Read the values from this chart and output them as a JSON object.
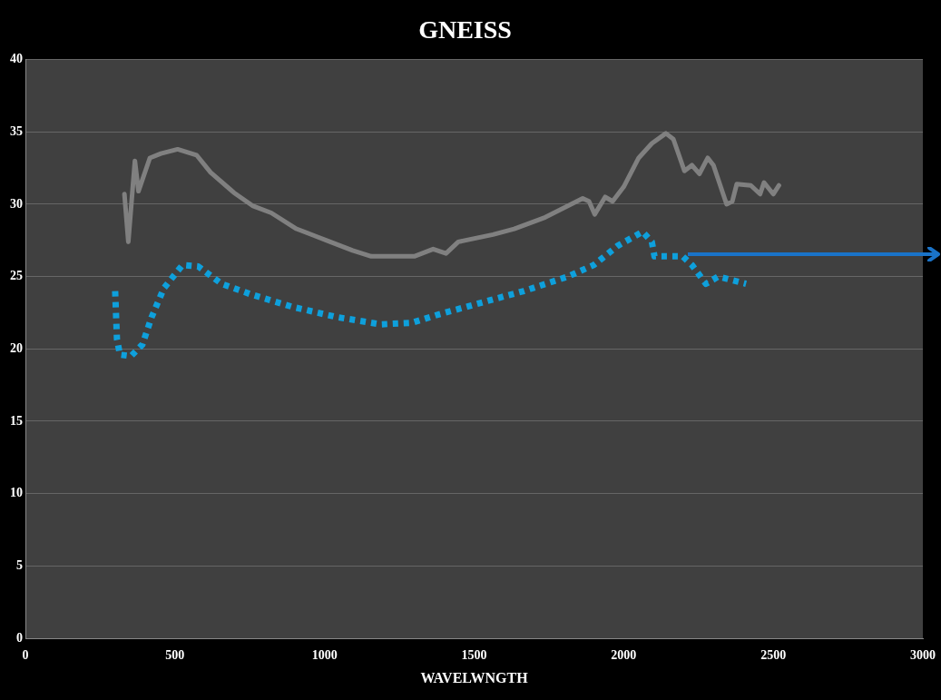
{
  "chart_data": {
    "type": "line",
    "title": "GNEISS",
    "xlabel": "WAVELWNGTH",
    "xlim": [
      0,
      3000
    ],
    "xticks": [
      0,
      500,
      1000,
      1500,
      2000,
      2500,
      3000
    ],
    "ylim": [
      0,
      40
    ],
    "yticks": [
      0,
      5,
      10,
      15,
      20,
      25,
      30,
      35,
      40
    ],
    "grid": "y",
    "legend": false,
    "marker": "none",
    "series": [
      {
        "color": "#808080",
        "line_style": "solid",
        "x": [
          331,
          344,
          366,
          378,
          416,
          453,
          509,
          572,
          619,
          697,
          759,
          822,
          906,
          969,
          1019,
          1094,
          1156,
          1300,
          1363,
          1406,
          1447,
          1563,
          1634,
          1738,
          1863,
          1884,
          1903,
          1938,
          1963,
          2000,
          2050,
          2094,
          2141,
          2166,
          2203,
          2228,
          2253,
          2281,
          2300,
          2344,
          2363,
          2378,
          2425,
          2456,
          2469,
          2500,
          2519
        ],
        "values": [
          30.7,
          27.4,
          33.0,
          30.9,
          33.2,
          33.5,
          33.8,
          33.4,
          32.2,
          30.8,
          29.9,
          29.4,
          28.3,
          27.8,
          27.4,
          26.8,
          26.4,
          26.4,
          26.9,
          26.6,
          27.4,
          27.9,
          28.3,
          29.1,
          30.4,
          30.2,
          29.3,
          30.5,
          30.2,
          31.2,
          33.2,
          34.2,
          34.9,
          34.5,
          32.3,
          32.7,
          32.1,
          33.2,
          32.7,
          30.0,
          30.2,
          31.4,
          31.3,
          30.7,
          31.5,
          30.7,
          31.3
        ]
      },
      {
        "color": "#0ea0dc",
        "line_style": "dotted",
        "x": [
          300,
          306,
          316,
          353,
          391,
          422,
          463,
          525,
          578,
          656,
          750,
          894,
          1041,
          1188,
          1291,
          1384,
          1525,
          1666,
          1813,
          1900,
          1978,
          2063,
          2094,
          2103,
          2197,
          2228,
          2275,
          2316,
          2409
        ],
        "values": [
          24.0,
          20.7,
          19.6,
          19.5,
          20.3,
          22.2,
          24.2,
          25.8,
          25.7,
          24.5,
          23.8,
          22.9,
          22.2,
          21.7,
          21.8,
          22.4,
          23.2,
          24.0,
          25.0,
          25.8,
          27.1,
          28.1,
          27.4,
          26.4,
          26.4,
          25.8,
          24.5,
          25.0,
          24.5
        ]
      }
    ]
  }
}
